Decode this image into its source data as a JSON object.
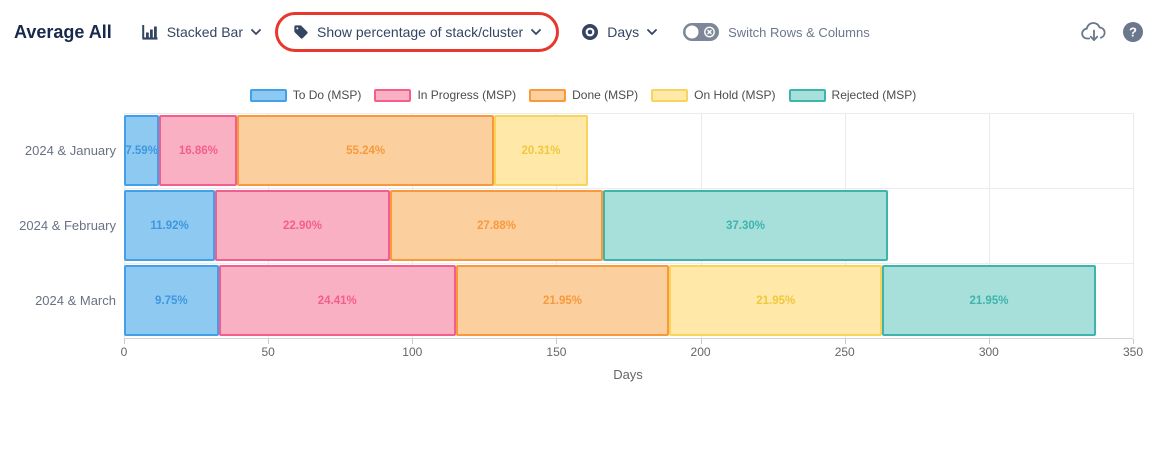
{
  "header": {
    "title": "Average All",
    "chart_type": {
      "label": "Stacked Bar"
    },
    "percentage": {
      "label": "Show percentage of stack/cluster"
    },
    "measure": {
      "label": "Days"
    },
    "toggle": {
      "label": "Switch Rows & Columns",
      "state": "off"
    },
    "icons": {
      "help_glyph": "?"
    }
  },
  "annotation": {
    "shape": "red-oval-highlight",
    "color": "#e8382d"
  },
  "chart_data": {
    "type": "bar",
    "orientation": "horizontal",
    "stacked": true,
    "percent_labels": true,
    "title": "",
    "xlabel": "Days",
    "xlim": [
      0,
      350
    ],
    "xticks": [
      0,
      50,
      100,
      150,
      200,
      250,
      300,
      350
    ],
    "grid": true,
    "legend_position": "top",
    "categories": [
      "2024 & January",
      "2024 & February",
      "2024 & March"
    ],
    "bar_total_days": [
      161,
      265,
      337
    ],
    "series": [
      {
        "name": "To Do (MSP)",
        "fill": "#8EC9F1",
        "border": "#41A0E8",
        "label_color": "#3E97DF",
        "percentages": [
          7.59,
          11.92,
          9.75
        ]
      },
      {
        "name": "In Progress (MSP)",
        "fill": "#F9B0C3",
        "border": "#F45E8E",
        "label_color": "#F45E8E",
        "percentages": [
          16.86,
          22.9,
          24.41
        ]
      },
      {
        "name": "Done (MSP)",
        "fill": "#FCCF9F",
        "border": "#F8993C",
        "label_color": "#F8993C",
        "percentages": [
          55.24,
          27.88,
          21.95
        ]
      },
      {
        "name": "On Hold (MSP)",
        "fill": "#FFE8A8",
        "border": "#F9D45C",
        "label_color": "#F0C83C",
        "percentages": [
          20.31,
          0,
          21.95
        ]
      },
      {
        "name": "Rejected (MSP)",
        "fill": "#A7DFDB",
        "border": "#3EB4AD",
        "label_color": "#3EB4AD",
        "percentages": [
          0,
          37.3,
          21.95
        ]
      }
    ]
  }
}
